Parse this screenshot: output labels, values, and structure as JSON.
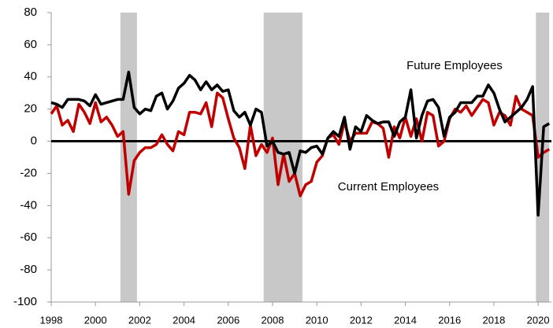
{
  "chart_data": {
    "type": "line",
    "x": [
      1998,
      1998.25,
      1998.5,
      1998.75,
      1999,
      1999.25,
      1999.5,
      1999.75,
      2000,
      2000.25,
      2000.5,
      2000.75,
      2001,
      2001.25,
      2001.5,
      2001.75,
      2002,
      2002.25,
      2002.5,
      2002.75,
      2003,
      2003.25,
      2003.5,
      2003.75,
      2004,
      2004.25,
      2004.5,
      2004.75,
      2005,
      2005.25,
      2005.5,
      2005.75,
      2006,
      2006.25,
      2006.5,
      2006.75,
      2007,
      2007.25,
      2007.5,
      2007.75,
      2008,
      2008.25,
      2008.5,
      2008.75,
      2009,
      2009.25,
      2009.5,
      2009.75,
      2010,
      2010.25,
      2010.5,
      2010.75,
      2011,
      2011.25,
      2011.5,
      2011.75,
      2012,
      2012.25,
      2012.5,
      2012.75,
      2013,
      2013.25,
      2013.5,
      2013.75,
      2014,
      2014.25,
      2014.5,
      2014.75,
      2015,
      2015.25,
      2015.5,
      2015.75,
      2016,
      2016.25,
      2016.5,
      2016.75,
      2017,
      2017.25,
      2017.5,
      2017.75,
      2018,
      2018.25,
      2018.5,
      2018.75,
      2019,
      2019.25,
      2019.5,
      2019.75,
      2020,
      2020.25,
      2020.5
    ],
    "series": [
      {
        "name": "Future Employees",
        "color": "#000000",
        "values": [
          24,
          23,
          21,
          26,
          26,
          26,
          25,
          22,
          29,
          23,
          24,
          25,
          26,
          26,
          43,
          21,
          17,
          20,
          19,
          28,
          30,
          20,
          25,
          33,
          36,
          41,
          38,
          32,
          37,
          32,
          35,
          31,
          32,
          19,
          15,
          18,
          10,
          20,
          18,
          -3,
          0,
          -7,
          -8,
          -7,
          -20,
          -6,
          -7,
          -4,
          -3,
          -8,
          2,
          6,
          3,
          15,
          -5,
          9,
          6,
          16,
          13,
          11,
          12,
          12,
          3,
          12,
          15,
          32,
          2,
          16,
          25,
          26,
          21,
          3,
          15,
          18,
          24,
          24,
          24,
          28,
          28,
          35,
          30,
          20,
          12,
          15,
          18,
          21,
          26,
          34,
          -46,
          9,
          11
        ]
      },
      {
        "name": "Current Employees",
        "color": "#c00000",
        "values": [
          17,
          22,
          10,
          13,
          6,
          23,
          18,
          11,
          24,
          12,
          15,
          10,
          3,
          6,
          -33,
          -12,
          -7,
          -4,
          -4,
          -2,
          4,
          -2,
          -6,
          6,
          4,
          18,
          18,
          17,
          24,
          9,
          30,
          27,
          14,
          2,
          -4,
          -17,
          10,
          -9,
          -2,
          -7,
          2,
          -27,
          -8,
          -25,
          -20,
          -34,
          -27,
          -25,
          -13,
          -9,
          2,
          4,
          -2,
          12,
          0,
          5,
          5,
          5,
          12,
          11,
          8,
          -10,
          9,
          2,
          15,
          3,
          14,
          0,
          18,
          16,
          -3,
          0,
          14,
          20,
          18,
          22,
          16,
          21,
          26,
          24,
          10,
          18,
          16,
          10,
          28,
          20,
          18,
          16,
          -10,
          -7,
          -5
        ]
      }
    ],
    "shaded_periods": [
      [
        2001.125,
        2001.875
      ],
      [
        2007.6,
        2009.35
      ],
      [
        2019.9,
        2020.5
      ]
    ],
    "shade_color": "#c8c8c8",
    "xlim": [
      1998,
      2020.6
    ],
    "xticks": [
      1998,
      2000,
      2002,
      2004,
      2006,
      2008,
      2010,
      2012,
      2014,
      2016,
      2018,
      2020
    ],
    "ylim": [
      -100,
      80
    ],
    "yticks": [
      -100,
      -80,
      -60,
      -40,
      -20,
      0,
      20,
      40,
      60,
      80
    ]
  }
}
